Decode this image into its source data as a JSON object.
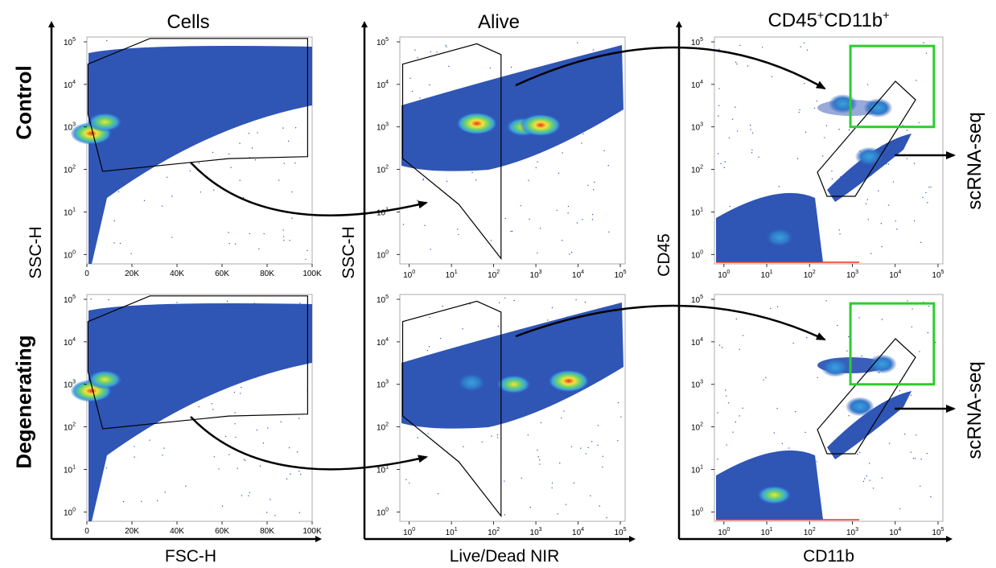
{
  "chart_data": [
    {
      "type": "scatter",
      "title": "Cells",
      "xlabel": "FSC-H",
      "ylabel": "SSC-H",
      "x_scale": "linear",
      "y_scale": "log",
      "xlim": [
        0,
        100000
      ],
      "ylim": [
        0.6,
        130000
      ],
      "x_ticks": [
        "0",
        "20K",
        "40K",
        "60K",
        "80K",
        "100K"
      ],
      "y_ticks": [
        "10^0",
        "10^1",
        "10^2",
        "10^3",
        "10^4",
        "10^5"
      ],
      "rows": [
        "Control",
        "Degenerating"
      ],
      "density_peaks": [
        {
          "row": "Control",
          "x": 2000,
          "y": 700,
          "level": "high"
        },
        {
          "row": "Control",
          "x": 8000,
          "y": 1300,
          "level": "medium"
        },
        {
          "row": "Degenerating",
          "x": 2000,
          "y": 700,
          "level": "high"
        },
        {
          "row": "Degenerating",
          "x": 8000,
          "y": 1300,
          "level": "medium"
        }
      ],
      "gate": {
        "name": "Cells",
        "vertices": [
          [
            500,
            30000
          ],
          [
            28000,
            120000
          ],
          [
            98000,
            120000
          ],
          [
            98000,
            200
          ],
          [
            63000,
            180
          ],
          [
            7000,
            90
          ],
          [
            500,
            2000
          ]
        ]
      }
    },
    {
      "type": "scatter",
      "title": "Alive",
      "xlabel": "Live/Dead NIR",
      "ylabel": "SSC-H",
      "x_scale": "log",
      "y_scale": "log",
      "xlim": [
        0.6,
        130000
      ],
      "ylim": [
        0.6,
        130000
      ],
      "x_ticks": [
        "10^0",
        "10^1",
        "10^2",
        "10^3",
        "10^4",
        "10^5"
      ],
      "y_ticks": [
        "10^0",
        "10^1",
        "10^2",
        "10^3",
        "10^4",
        "10^5"
      ],
      "rows": [
        "Control",
        "Degenerating"
      ],
      "density_peaks": [
        {
          "row": "Control",
          "x": 40,
          "y": 1200,
          "level": "high"
        },
        {
          "row": "Control",
          "x": 500,
          "y": 1000,
          "level": "medium"
        },
        {
          "row": "Control",
          "x": 1300,
          "y": 1100,
          "level": "high"
        },
        {
          "row": "Degenerating",
          "x": 30,
          "y": 1100,
          "level": "low"
        },
        {
          "row": "Degenerating",
          "x": 300,
          "y": 1000,
          "level": "medium"
        },
        {
          "row": "Degenerating",
          "x": 6000,
          "y": 1200,
          "level": "high"
        }
      ],
      "gate": {
        "name": "Alive",
        "vertices": [
          [
            0.7,
            30000
          ],
          [
            40,
            90000
          ],
          [
            150,
            50000
          ],
          [
            150,
            0.8
          ],
          [
            15,
            15
          ],
          [
            0.7,
            180
          ]
        ]
      }
    },
    {
      "type": "scatter",
      "title": "CD45⁺CD11b⁺",
      "xlabel": "CD11b",
      "ylabel": "CD45",
      "x_scale": "log",
      "y_scale": "log",
      "xlim": [
        0.6,
        130000
      ],
      "ylim": [
        0.6,
        130000
      ],
      "x_ticks": [
        "10^0",
        "10^1",
        "10^2",
        "10^3",
        "10^4",
        "10^5"
      ],
      "y_ticks": [
        "10^0",
        "10^1",
        "10^2",
        "10^3",
        "10^4",
        "10^5"
      ],
      "rows": [
        "Control",
        "Degenerating"
      ],
      "density_peaks": [
        {
          "row": "Control",
          "x": 20,
          "y": 2.5,
          "level": "low"
        },
        {
          "row": "Control",
          "x": 2500,
          "y": 200,
          "level": "low"
        },
        {
          "row": "Control",
          "x": 600,
          "y": 3500,
          "level": "low"
        },
        {
          "row": "Control",
          "x": 4000,
          "y": 2800,
          "level": "low"
        },
        {
          "row": "Degenerating",
          "x": 15,
          "y": 2.5,
          "level": "medium"
        },
        {
          "row": "Degenerating",
          "x": 1500,
          "y": 300,
          "level": "low"
        },
        {
          "row": "Degenerating",
          "x": 400,
          "y": 2500,
          "level": "low"
        },
        {
          "row": "Degenerating",
          "x": 5000,
          "y": 3000,
          "level": "low"
        }
      ],
      "gates": [
        {
          "name": "CD45+CD11b+",
          "color": "#000000"
        },
        {
          "name": "scRNA-seq sort",
          "color": "#2ecc2e",
          "x_range": [
            900,
            80000
          ],
          "y_range": [
            1000,
            80000
          ]
        }
      ],
      "output_label": "scRNA-seq"
    }
  ],
  "column_titles": [
    "Cells",
    "Alive",
    "CD45⁺CD11b⁺"
  ],
  "row_labels": [
    "Control",
    "Degenerating"
  ],
  "axis_labels": {
    "cells_x": "FSC-H",
    "alive_x": "Live/Dead NIR",
    "cd_x": "CD11b",
    "cells_y": "SSC-H",
    "alive_y": "SSC-H",
    "cd_y": "CD45"
  },
  "outputs": [
    "scRNA-seq",
    "scRNA-seq"
  ],
  "colors": {
    "background_dot": "#2f55b5",
    "low": "#3aa0e0",
    "mid": "#6cd36c",
    "high_mid": "#f5e23a",
    "high": "#e8321c",
    "sort_gate": "#2ecc2e",
    "gate": "#000000"
  }
}
